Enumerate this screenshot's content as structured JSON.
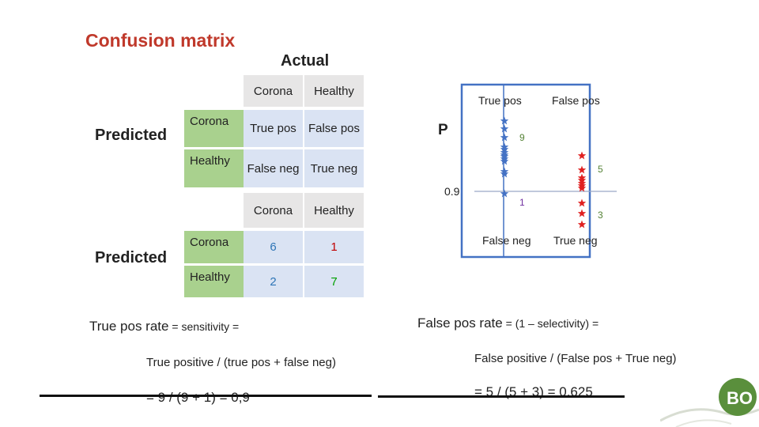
{
  "title": "Confusion matrix",
  "actual_label": "Actual",
  "predicted_label": "Predicted",
  "matrix1": {
    "col_headers": [
      "Corona",
      "Healthy"
    ],
    "rows": [
      {
        "label": "Corona",
        "cells": [
          "True pos",
          "False pos"
        ]
      },
      {
        "label": "Healthy",
        "cells": [
          "False neg",
          "True neg"
        ]
      }
    ]
  },
  "matrix2": {
    "col_headers": [
      "Corona",
      "Healthy"
    ],
    "rows": [
      {
        "label": "Corona",
        "cells": [
          "6",
          "1"
        ]
      },
      {
        "label": "Healthy",
        "cells": [
          "2",
          "7"
        ]
      }
    ]
  },
  "diagram": {
    "p_label": "P",
    "threshold_label": "0.9",
    "quadrants": {
      "top_left": "True pos",
      "top_right": "False pos",
      "bottom_left": "False neg",
      "bottom_right": "True neg"
    },
    "counts": {
      "true_pos": "9",
      "false_pos": "5",
      "false_neg": "1",
      "true_neg": "3"
    },
    "colors": {
      "corona_star": "#4472c4",
      "healthy_star": "#e02020",
      "count_true_pos": "#548235",
      "count_false_pos": "#548235",
      "count_false_neg": "#7030a0",
      "count_true_neg": "#548235"
    }
  },
  "formulas": {
    "tpr_title_main": "True pos rate",
    "tpr_title_rest": " = sensitivity =",
    "tpr_def": "True positive  /  (true pos + false neg)",
    "tpr_calc": "= 9 / (9 + 1) = 0,9",
    "fpr_title_main": "False pos rate",
    "fpr_title_rest": " = (1 – selectivity) =",
    "fpr_def": "False positive  /  (False pos + True neg)",
    "fpr_calc": "= 5 / (5 + 3) = 0.625"
  },
  "logo_text": "BO"
}
